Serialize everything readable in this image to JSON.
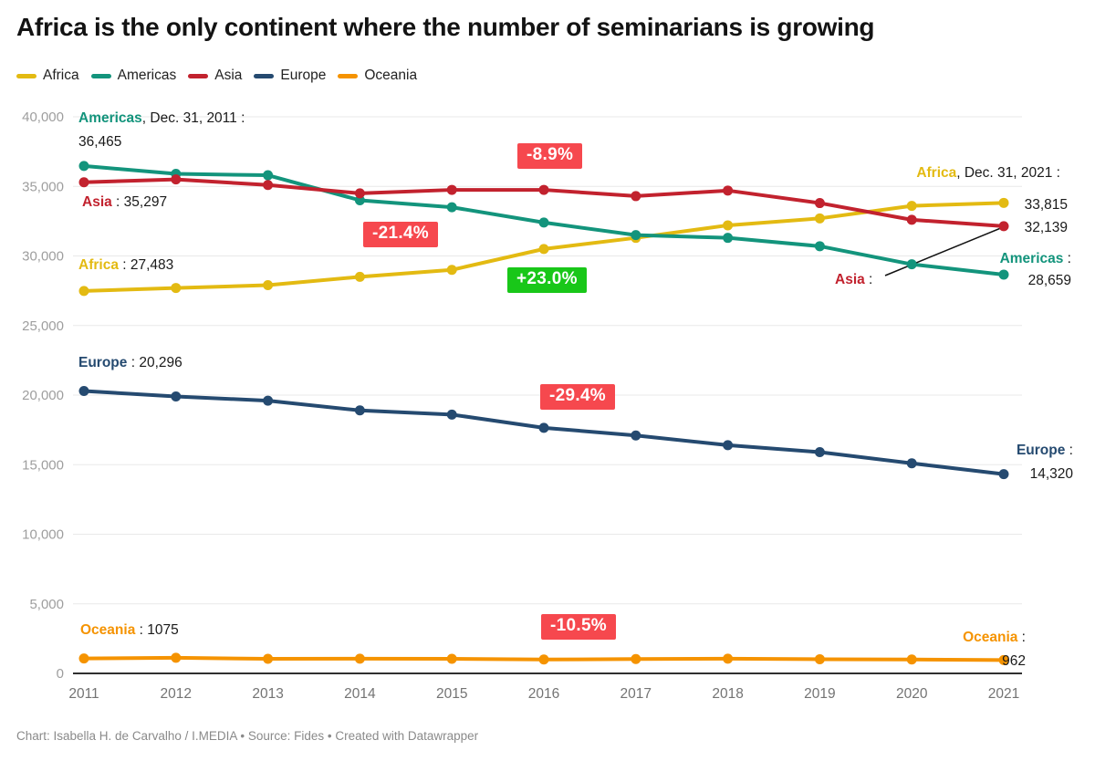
{
  "title": "Africa is the only continent where the number of seminarians is growing",
  "footer": "Chart: Isabella H. de Carvalho / I.MEDIA • Source: Fides • Created with Datawrapper",
  "colors": {
    "africa": "#E3BA12",
    "americas": "#13947C",
    "asia": "#C2222E",
    "europe": "#254A70",
    "oceania": "#F59300",
    "badge_negative": "#F6484E",
    "badge_positive": "#19C719",
    "grid": "#e9e9e9",
    "axis_line": "#2f2f2f",
    "y_tick_text": "#9e9e9e",
    "x_tick_text": "#737373"
  },
  "legend": {
    "items": [
      {
        "label": "Africa",
        "color": "africa"
      },
      {
        "label": "Americas",
        "color": "americas"
      },
      {
        "label": "Asia",
        "color": "asia"
      },
      {
        "label": "Europe",
        "color": "europe"
      },
      {
        "label": "Oceania",
        "color": "oceania"
      }
    ]
  },
  "chart_data": {
    "type": "line",
    "title": "Africa is the only continent where the number of seminarians is growing",
    "xlabel": "",
    "ylabel": "",
    "x": [
      2011,
      2012,
      2013,
      2014,
      2015,
      2016,
      2017,
      2018,
      2019,
      2020,
      2021
    ],
    "ylim": [
      0,
      40000
    ],
    "grid": true,
    "legend_position": "top-left",
    "y_ticks": [
      {
        "v": 0,
        "label": "0"
      },
      {
        "v": 5000,
        "label": "5,000"
      },
      {
        "v": 10000,
        "label": "10,000"
      },
      {
        "v": 15000,
        "label": "15,000"
      },
      {
        "v": 20000,
        "label": "20,000"
      },
      {
        "v": 25000,
        "label": "25,000"
      },
      {
        "v": 30000,
        "label": "30,000"
      },
      {
        "v": 35000,
        "label": "35,000"
      },
      {
        "v": 40000,
        "label": "40,000"
      }
    ],
    "series": [
      {
        "name": "Africa",
        "color_key": "africa",
        "values": [
          27483,
          27700,
          27900,
          28500,
          29000,
          30500,
          31300,
          32200,
          32700,
          33600,
          33815
        ]
      },
      {
        "name": "Americas",
        "color_key": "americas",
        "values": [
          36465,
          35900,
          35800,
          34000,
          33500,
          32400,
          31500,
          31300,
          30700,
          29400,
          28659
        ]
      },
      {
        "name": "Asia",
        "color_key": "asia",
        "values": [
          35297,
          35500,
          35100,
          34500,
          34750,
          34750,
          34300,
          34700,
          33800,
          32600,
          32139
        ]
      },
      {
        "name": "Europe",
        "color_key": "europe",
        "values": [
          20296,
          19900,
          19600,
          18900,
          18600,
          17650,
          17100,
          16400,
          15900,
          15100,
          14320
        ]
      },
      {
        "name": "Oceania",
        "color_key": "oceania",
        "values": [
          1075,
          1120,
          1050,
          1060,
          1050,
          1000,
          1030,
          1060,
          1020,
          1000,
          962
        ]
      }
    ]
  },
  "annotations": {
    "americas_2011": {
      "series": "Americas",
      "sep": ", Dec. 31, 2011 :",
      "value": "36,465"
    },
    "asia_2011": {
      "series": "Asia",
      "sep": " : ",
      "value": "35,297"
    },
    "africa_2011": {
      "series": "Africa",
      "sep": " : ",
      "value": "27,483"
    },
    "europe_2011": {
      "series": "Europe",
      "sep": " : ",
      "value": "20,296"
    },
    "oceania_2011": {
      "series": "Oceania",
      "sep": " : ",
      "value": "1075"
    },
    "africa_2021": {
      "series": "Africa",
      "sep": ", Dec. 31, 2021 :",
      "value": "33,815"
    },
    "asia_2021": {
      "series": "Asia",
      "sep": " :",
      "value": "32,139"
    },
    "americas_2021": {
      "series": "Americas",
      "sep": " :",
      "value": "28,659"
    },
    "europe_2021": {
      "series": "Europe",
      "sep": " :",
      "value": "14,320"
    },
    "oceania_2021": {
      "series": "Oceania",
      "sep": " :",
      "value": "962"
    }
  },
  "badges": {
    "asia_change": {
      "text": "-8.9%",
      "type": "negative"
    },
    "americas_change": {
      "text": "-21.4%",
      "type": "negative"
    },
    "africa_change": {
      "text": "+23.0%",
      "type": "positive"
    },
    "europe_change": {
      "text": "-29.4%",
      "type": "negative"
    },
    "oceania_change": {
      "text": "-10.5%",
      "type": "negative"
    }
  }
}
